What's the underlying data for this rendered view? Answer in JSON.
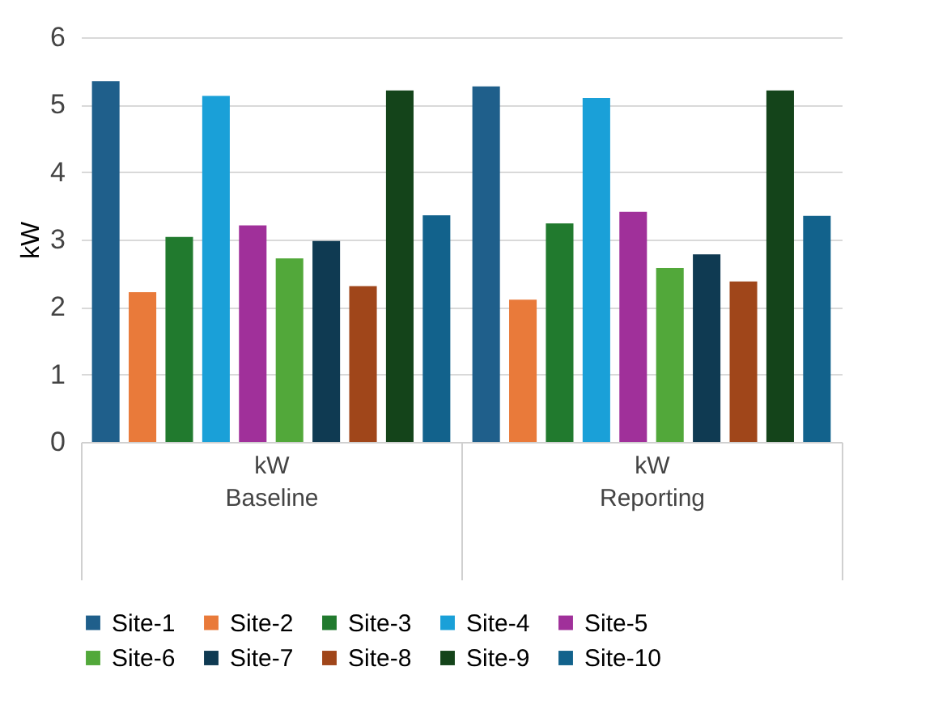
{
  "chart_data": {
    "type": "bar",
    "ylabel": "kW",
    "categories": [
      "Baseline",
      "Reporting"
    ],
    "annotations": [
      "kW",
      "kW"
    ],
    "ylim": [
      0,
      6
    ],
    "yticks": [
      0,
      1,
      2,
      3,
      4,
      5,
      6
    ],
    "grid": "y",
    "legend": "bottom",
    "series": [
      {
        "name": "Site-1",
        "color": "#1f5f8b",
        "values": [
          5.35,
          5.27
        ]
      },
      {
        "name": "Site-2",
        "color": "#e97a3a",
        "values": [
          2.22,
          2.11
        ]
      },
      {
        "name": "Site-3",
        "color": "#217a2e",
        "values": [
          3.04,
          3.24
        ]
      },
      {
        "name": "Site-4",
        "color": "#1aa0d8",
        "values": [
          5.13,
          5.1
        ]
      },
      {
        "name": "Site-5",
        "color": "#a0309a",
        "values": [
          3.21,
          3.41
        ]
      },
      {
        "name": "Site-6",
        "color": "#52a83a",
        "values": [
          2.72,
          2.58
        ]
      },
      {
        "name": "Site-7",
        "color": "#0f3a52",
        "values": [
          2.98,
          2.78
        ]
      },
      {
        "name": "Site-8",
        "color": "#a0461a",
        "values": [
          2.31,
          2.38
        ]
      },
      {
        "name": "Site-9",
        "color": "#14441a",
        "values": [
          5.21,
          5.21
        ]
      },
      {
        "name": "Site-10",
        "color": "#12628c",
        "values": [
          3.36,
          3.35
        ]
      }
    ]
  }
}
